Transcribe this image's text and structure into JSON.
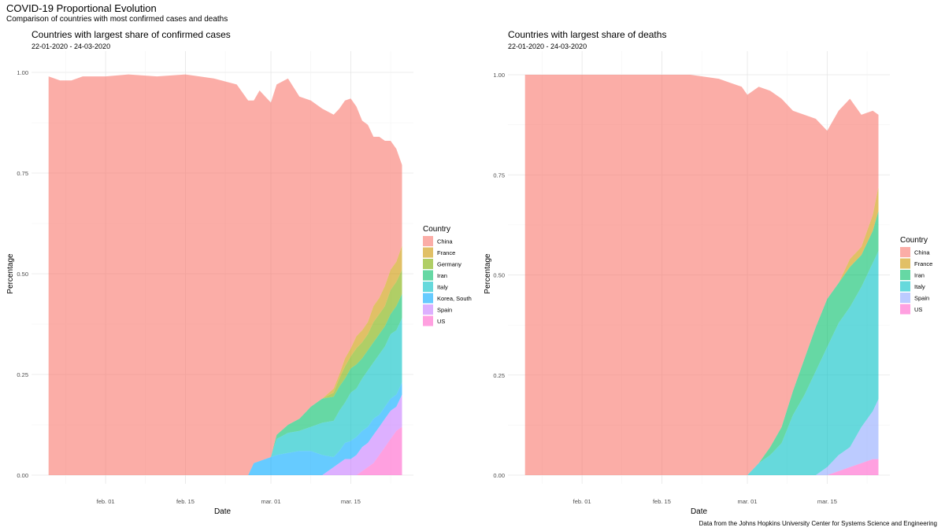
{
  "title": "COVID-19 Proportional Evolution",
  "subtitle": "Comparison of countries with most confirmed cases and deaths",
  "caption": "Data from the Johns Hopkins University Center for Systems Science and Engineering",
  "colors": {
    "China": "#F8766D",
    "France": "#CD9600",
    "Germany": "#7CAE00",
    "Iran": "#00BE67",
    "Italy": "#00BFC4",
    "Korea, South": "#00A9FF",
    "Spain": "#C77CFF",
    "US": "#FF61CC",
    "Spain_deaths": "#8FA8FF"
  },
  "chart_data": [
    {
      "type": "area",
      "stacked": true,
      "title": "Countries with largest share of confirmed cases",
      "subtitle": "22-01-2020 - 24-03-2020",
      "xlabel": "Date",
      "ylabel": "Percentage",
      "x_range": [
        "2020-01-22",
        "2020-03-24"
      ],
      "ylim": [
        0,
        1
      ],
      "x_ticks": [
        {
          "date": "2020-02-01",
          "label": "feb. 01"
        },
        {
          "date": "2020-02-15",
          "label": "feb. 15"
        },
        {
          "date": "2020-03-01",
          "label": "mar. 01"
        },
        {
          "date": "2020-03-15",
          "label": "mar. 15"
        }
      ],
      "y_ticks": [
        {
          "value": 0,
          "label": "0.00"
        },
        {
          "value": 0.25,
          "label": "0.25"
        },
        {
          "value": 0.5,
          "label": "0.50"
        },
        {
          "value": 0.75,
          "label": "0.75"
        },
        {
          "value": 1,
          "label": "1.00"
        }
      ],
      "legend_title": "Country",
      "legend_position": "right",
      "grid": true,
      "x": [
        "2020-01-22",
        "2020-01-24",
        "2020-01-26",
        "2020-01-28",
        "2020-02-01",
        "2020-02-05",
        "2020-02-10",
        "2020-02-15",
        "2020-02-20",
        "2020-02-24",
        "2020-02-26",
        "2020-02-27",
        "2020-02-28",
        "2020-02-29",
        "2020-03-01",
        "2020-03-02",
        "2020-03-04",
        "2020-03-06",
        "2020-03-08",
        "2020-03-10",
        "2020-03-12",
        "2020-03-13",
        "2020-03-14",
        "2020-03-15",
        "2020-03-16",
        "2020-03-17",
        "2020-03-18",
        "2020-03-19",
        "2020-03-20",
        "2020-03-21",
        "2020-03-22",
        "2020-03-23",
        "2020-03-24"
      ],
      "series": [
        {
          "name": "US",
          "values": [
            0,
            0,
            0,
            0,
            0,
            0,
            0,
            0,
            0,
            0,
            0,
            0,
            0,
            0,
            0,
            0,
            0,
            0,
            0,
            0,
            0,
            0,
            0,
            0,
            0,
            0.01,
            0.02,
            0.03,
            0.05,
            0.07,
            0.09,
            0.11,
            0.12
          ]
        },
        {
          "name": "Spain",
          "values": [
            0,
            0,
            0,
            0,
            0,
            0,
            0,
            0,
            0,
            0,
            0,
            0,
            0,
            0,
            0,
            0,
            0,
            0,
            0,
            0,
            0.02,
            0.03,
            0.04,
            0.04,
            0.05,
            0.06,
            0.06,
            0.07,
            0.07,
            0.07,
            0.07,
            0.06,
            0.08
          ]
        },
        {
          "name": "Korea, South",
          "values": [
            0,
            0,
            0,
            0,
            0,
            0,
            0,
            0,
            0,
            0,
            0,
            0.03,
            0.035,
            0.04,
            0.045,
            0.05,
            0.055,
            0.06,
            0.06,
            0.05,
            0.025,
            0.03,
            0.04,
            0.045,
            0.045,
            0.04,
            0.04,
            0.04,
            0.03,
            0.03,
            0.03,
            0.03,
            0.03
          ]
        },
        {
          "name": "Italy",
          "values": [
            0,
            0,
            0,
            0,
            0,
            0,
            0,
            0,
            0,
            0,
            0,
            0,
            0,
            0,
            0,
            0.04,
            0.05,
            0.05,
            0.06,
            0.08,
            0.09,
            0.1,
            0.1,
            0.12,
            0.12,
            0.13,
            0.14,
            0.14,
            0.15,
            0.15,
            0.16,
            0.16,
            0.16
          ]
        },
        {
          "name": "Iran",
          "values": [
            0,
            0,
            0,
            0,
            0,
            0,
            0,
            0,
            0,
            0,
            0,
            0,
            0,
            0,
            0,
            0.01,
            0.02,
            0.03,
            0.05,
            0.06,
            0.06,
            0.06,
            0.06,
            0.06,
            0.06,
            0.05,
            0.05,
            0.05,
            0.05,
            0.05,
            0.05,
            0.06,
            0.06
          ]
        },
        {
          "name": "Germany",
          "values": [
            0,
            0,
            0,
            0,
            0,
            0,
            0,
            0,
            0,
            0,
            0,
            0,
            0,
            0,
            0,
            0,
            0,
            0,
            0,
            0,
            0.01,
            0.02,
            0.03,
            0.03,
            0.04,
            0.04,
            0.04,
            0.05,
            0.05,
            0.05,
            0.06,
            0.06,
            0.06
          ]
        },
        {
          "name": "France",
          "values": [
            0,
            0,
            0,
            0,
            0,
            0,
            0,
            0,
            0,
            0,
            0,
            0,
            0,
            0,
            0,
            0,
            0,
            0,
            0,
            0,
            0.01,
            0.01,
            0.02,
            0.02,
            0.03,
            0.03,
            0.03,
            0.04,
            0.04,
            0.05,
            0.05,
            0.05,
            0.06
          ]
        },
        {
          "name": "China",
          "values": [
            0.99,
            0.98,
            0.98,
            0.99,
            0.99,
            0.995,
            0.99,
            0.995,
            0.985,
            0.97,
            0.93,
            0.9,
            0.92,
            0.9,
            0.88,
            0.87,
            0.86,
            0.8,
            0.76,
            0.72,
            0.68,
            0.66,
            0.64,
            0.62,
            0.57,
            0.52,
            0.49,
            0.42,
            0.4,
            0.36,
            0.32,
            0.28,
            0.2
          ]
        }
      ]
    },
    {
      "type": "area",
      "stacked": true,
      "title": "Countries with largest share of deaths",
      "subtitle": "22-01-2020 - 24-03-2020",
      "xlabel": "Date",
      "ylabel": "Percentage",
      "x_range": [
        "2020-01-22",
        "2020-03-24"
      ],
      "ylim": [
        0,
        1
      ],
      "x_ticks": [
        {
          "date": "2020-02-01",
          "label": "feb. 01"
        },
        {
          "date": "2020-02-15",
          "label": "feb. 15"
        },
        {
          "date": "2020-03-01",
          "label": "mar. 01"
        },
        {
          "date": "2020-03-15",
          "label": "mar. 15"
        }
      ],
      "y_ticks": [
        {
          "value": 0,
          "label": "0.00"
        },
        {
          "value": 0.25,
          "label": "0.25"
        },
        {
          "value": 0.5,
          "label": "0.50"
        },
        {
          "value": 0.75,
          "label": "0.75"
        },
        {
          "value": 1,
          "label": "1.00"
        }
      ],
      "legend_title": "Country",
      "legend_position": "right",
      "grid": true,
      "x": [
        "2020-01-22",
        "2020-02-01",
        "2020-02-10",
        "2020-02-15",
        "2020-02-20",
        "2020-02-25",
        "2020-02-27",
        "2020-02-29",
        "2020-03-01",
        "2020-03-03",
        "2020-03-05",
        "2020-03-07",
        "2020-03-09",
        "2020-03-11",
        "2020-03-13",
        "2020-03-15",
        "2020-03-17",
        "2020-03-19",
        "2020-03-21",
        "2020-03-23",
        "2020-03-24"
      ],
      "series": [
        {
          "name": "US",
          "values": [
            0,
            0,
            0,
            0,
            0,
            0,
            0,
            0,
            0,
            0,
            0,
            0,
            0,
            0,
            0,
            0,
            0.01,
            0.02,
            0.03,
            0.04,
            0.04
          ]
        },
        {
          "name": "Spain",
          "values": [
            0,
            0,
            0,
            0,
            0,
            0,
            0,
            0,
            0,
            0,
            0,
            0,
            0,
            0,
            0,
            0.02,
            0.04,
            0.05,
            0.09,
            0.12,
            0.15
          ]
        },
        {
          "name": "Italy",
          "values": [
            0,
            0,
            0,
            0,
            0,
            0,
            0,
            0,
            0,
            0.03,
            0.05,
            0.08,
            0.15,
            0.2,
            0.26,
            0.3,
            0.33,
            0.35,
            0.35,
            0.37,
            0.37
          ]
        },
        {
          "name": "Iran",
          "values": [
            0,
            0,
            0,
            0,
            0,
            0,
            0,
            0,
            0,
            0,
            0.02,
            0.04,
            0.06,
            0.09,
            0.11,
            0.12,
            0.1,
            0.1,
            0.08,
            0.08,
            0.1
          ]
        },
        {
          "name": "France",
          "values": [
            0,
            0,
            0,
            0,
            0,
            0,
            0,
            0,
            0,
            0,
            0,
            0,
            0,
            0,
            0,
            0,
            0,
            0.02,
            0.02,
            0.04,
            0.06
          ]
        },
        {
          "name": "China",
          "values": [
            1,
            1,
            1,
            1,
            1,
            0.99,
            0.98,
            0.97,
            0.95,
            0.94,
            0.89,
            0.82,
            0.7,
            0.61,
            0.52,
            0.42,
            0.43,
            0.4,
            0.33,
            0.26,
            0.18
          ]
        }
      ]
    }
  ]
}
